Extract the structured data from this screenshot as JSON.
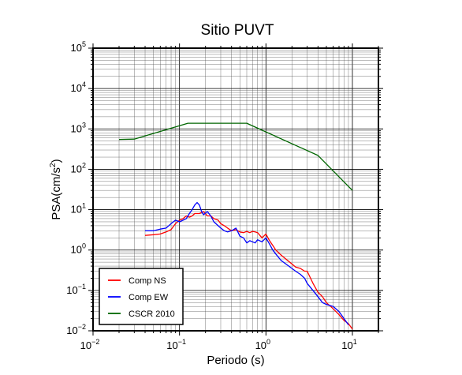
{
  "chart_data": {
    "type": "line",
    "title": "Sitio PUVT",
    "xlabel": "Periodo (s)",
    "ylabel_main": "PSA(cm/s",
    "ylabel_sup": "2",
    "ylabel_close": ")",
    "x_scale": "log",
    "y_scale": "log",
    "xlim": [
      0.01,
      20
    ],
    "ylim": [
      0.01,
      100000
    ],
    "grid": true,
    "legend_position": "bottom-left",
    "x_ticks": [
      {
        "base": "10",
        "exp": "−2",
        "value": 0.01
      },
      {
        "base": "10",
        "exp": "−1",
        "value": 0.1
      },
      {
        "base": "10",
        "exp": "0",
        "value": 1
      },
      {
        "base": "10",
        "exp": "1",
        "value": 10
      }
    ],
    "y_ticks": [
      {
        "base": "10",
        "exp": "−2",
        "value": 0.01
      },
      {
        "base": "10",
        "exp": "−1",
        "value": 0.1
      },
      {
        "base": "10",
        "exp": "0",
        "value": 1
      },
      {
        "base": "10",
        "exp": "1",
        "value": 10
      },
      {
        "base": "10",
        "exp": "2",
        "value": 100
      },
      {
        "base": "10",
        "exp": "3",
        "value": 1000
      },
      {
        "base": "10",
        "exp": "4",
        "value": 10000
      },
      {
        "base": "10",
        "exp": "5",
        "value": 100000
      }
    ],
    "series": [
      {
        "name": "Comp NS",
        "color": "#ff0000",
        "x": [
          0.04,
          0.05,
          0.06,
          0.07,
          0.08,
          0.09,
          0.1,
          0.11,
          0.12,
          0.13,
          0.14,
          0.15,
          0.17,
          0.19,
          0.21,
          0.23,
          0.25,
          0.28,
          0.3,
          0.33,
          0.36,
          0.4,
          0.45,
          0.5,
          0.55,
          0.6,
          0.65,
          0.7,
          0.75,
          0.8,
          0.9,
          1.0,
          1.1,
          1.2,
          1.3,
          1.5,
          1.7,
          2.0,
          2.2,
          2.5,
          2.8,
          3.0,
          3.5,
          4.0,
          4.5,
          5.0,
          6.0,
          7.0,
          8.0,
          9.0,
          10.0
        ],
        "y": [
          2.3,
          2.4,
          2.5,
          2.8,
          3.2,
          4.5,
          5.5,
          6.0,
          7.0,
          6.5,
          7.0,
          8.0,
          8.0,
          9.0,
          7.0,
          7.0,
          6.0,
          5.5,
          4.5,
          4.0,
          3.5,
          3.0,
          3.2,
          2.8,
          2.7,
          2.9,
          2.7,
          2.9,
          2.8,
          2.7,
          2.0,
          2.5,
          1.7,
          1.3,
          1.0,
          0.75,
          0.6,
          0.45,
          0.38,
          0.35,
          0.3,
          0.3,
          0.15,
          0.09,
          0.07,
          0.05,
          0.035,
          0.025,
          0.018,
          0.015,
          0.011
        ]
      },
      {
        "name": "Comp EW",
        "color": "#0000ff",
        "x": [
          0.04,
          0.05,
          0.06,
          0.07,
          0.08,
          0.09,
          0.1,
          0.11,
          0.12,
          0.13,
          0.14,
          0.15,
          0.16,
          0.17,
          0.18,
          0.19,
          0.21,
          0.23,
          0.25,
          0.28,
          0.3,
          0.33,
          0.36,
          0.4,
          0.45,
          0.5,
          0.55,
          0.6,
          0.65,
          0.7,
          0.75,
          0.8,
          0.9,
          1.0,
          1.1,
          1.2,
          1.3,
          1.5,
          1.7,
          2.0,
          2.2,
          2.5,
          2.8,
          3.0,
          3.5,
          4.0,
          4.5,
          5.0,
          6.0,
          7.0,
          8.0,
          9.0
        ],
        "y": [
          3.0,
          3.0,
          3.3,
          3.5,
          4.5,
          5.5,
          5.0,
          5.5,
          6.0,
          8.0,
          10.0,
          13.0,
          15.0,
          13.0,
          9.0,
          7.5,
          9.0,
          7.0,
          5.0,
          4.0,
          3.5,
          3.0,
          2.8,
          3.0,
          3.5,
          2.2,
          2.0,
          1.5,
          1.7,
          1.6,
          1.5,
          1.8,
          1.6,
          2.0,
          1.4,
          1.0,
          0.8,
          0.55,
          0.45,
          0.35,
          0.3,
          0.25,
          0.2,
          0.15,
          0.1,
          0.07,
          0.05,
          0.045,
          0.04,
          0.03,
          0.02,
          0.014
        ]
      },
      {
        "name": "CSCR 2010",
        "color": "#006600",
        "x": [
          0.02,
          0.03,
          0.125,
          0.6,
          4.0,
          10.0
        ],
        "y": [
          550,
          560,
          1380,
          1380,
          220,
          30
        ]
      }
    ]
  }
}
